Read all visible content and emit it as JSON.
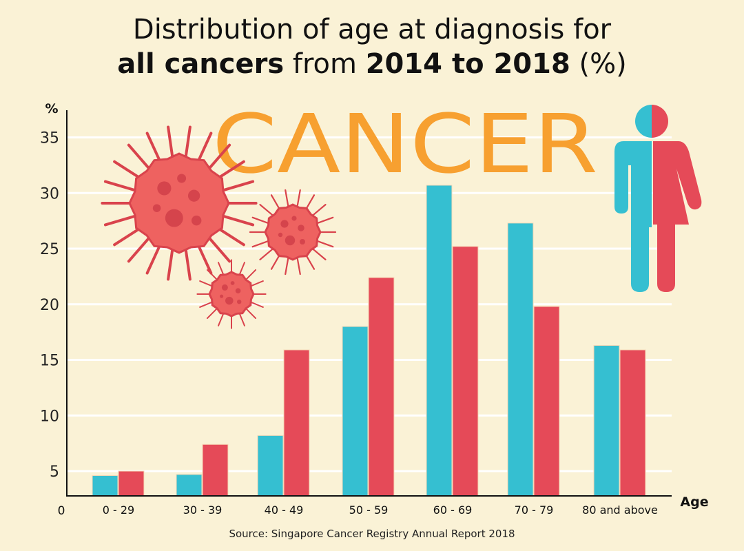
{
  "title": {
    "line1": "Distribution of age at diagnosis for",
    "line2_bold1": "all cancers",
    "line2_mid": " from ",
    "line2_bold2": "2014 to 2018",
    "line2_end": " (%)"
  },
  "decor_text": "CANCER",
  "source": "Source: Singapore Cancer Registry Annual Report 2018",
  "colors": {
    "male": "#35bfd1",
    "female": "#e54a58",
    "accent": "#f7a030",
    "background": "#faf2d6"
  },
  "chart_data": {
    "type": "bar",
    "title": "Distribution of age at diagnosis for all cancers from 2014 to 2018 (%)",
    "xlabel": "Age",
    "ylabel": "%",
    "y_ticks": [
      5,
      10,
      15,
      20,
      25,
      30,
      35
    ],
    "origin_label": "0",
    "ylim": [
      0,
      35
    ],
    "grid": true,
    "categories": [
      "0 - 29",
      "30 - 39",
      "40 - 49",
      "50 - 59",
      "60 - 69",
      "70 - 79",
      "80 and above"
    ],
    "series": [
      {
        "color": "#35bfd1",
        "values": [
          4.6,
          4.7,
          8.2,
          18.0,
          30.7,
          27.3,
          16.3
        ]
      },
      {
        "color": "#e54a58",
        "values": [
          5.0,
          7.4,
          15.9,
          22.4,
          25.2,
          19.8,
          15.9
        ]
      }
    ]
  }
}
